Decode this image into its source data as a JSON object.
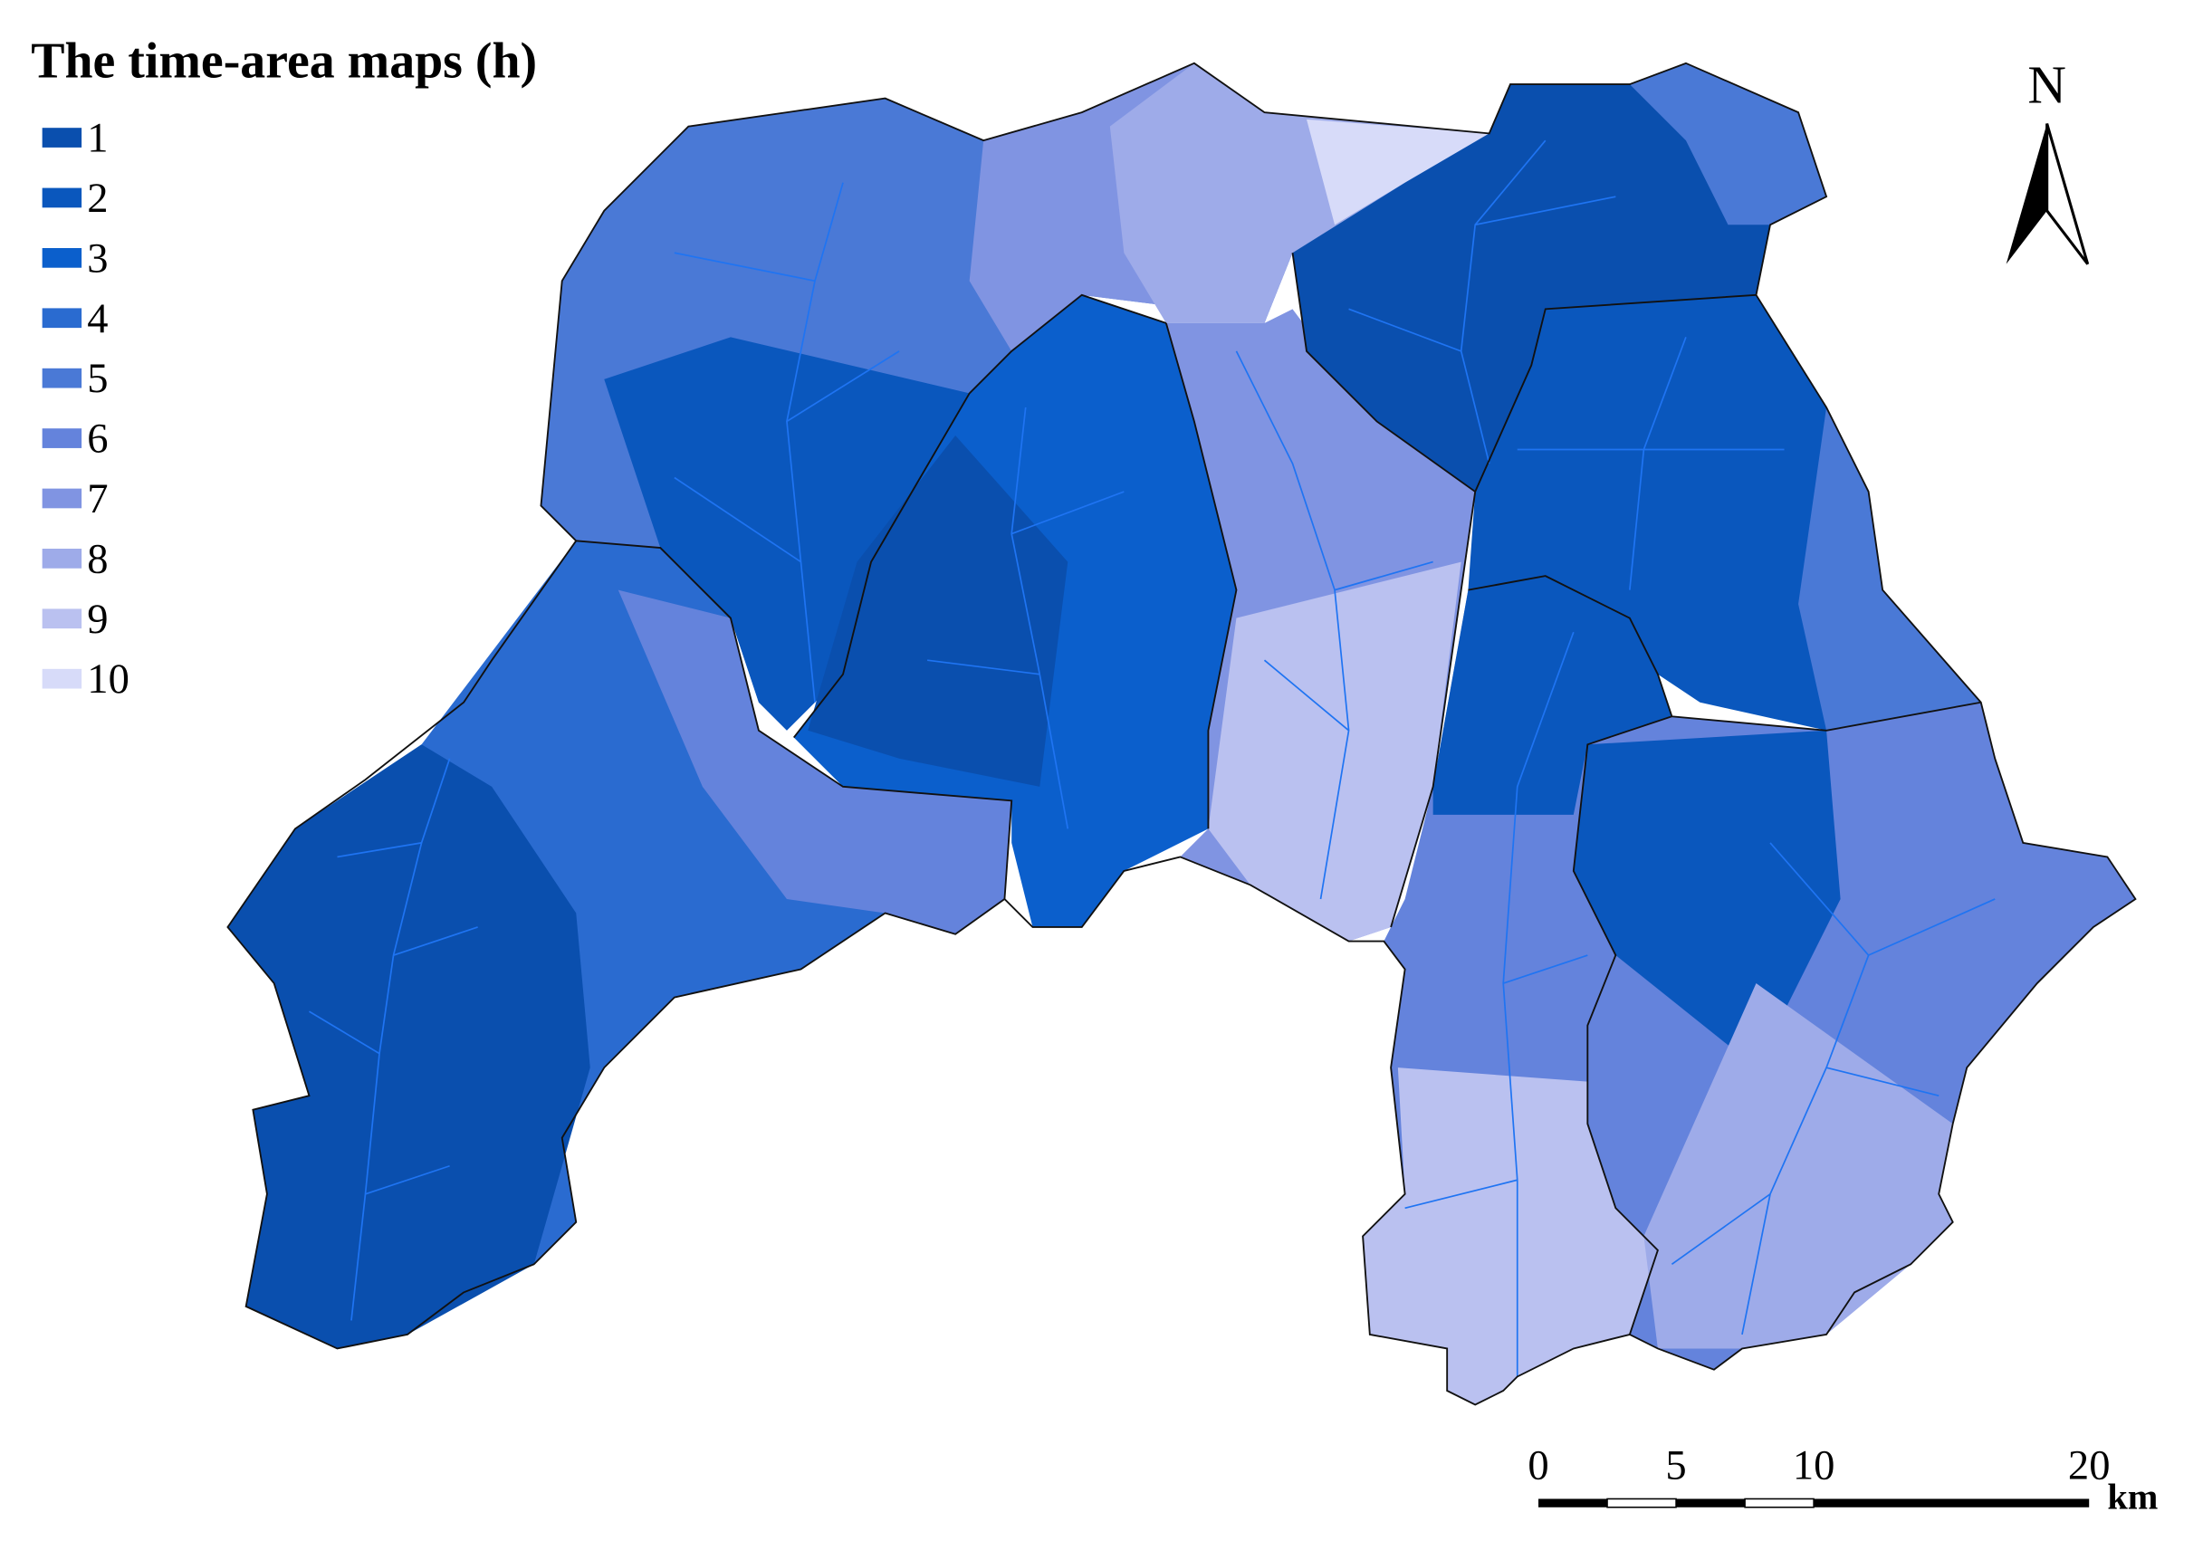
{
  "title": "The time-area maps (h)",
  "legend": [
    {
      "label": "1",
      "color": "#0a4fae"
    },
    {
      "label": "2",
      "color": "#0a57bd"
    },
    {
      "label": "3",
      "color": "#0b5fcc"
    },
    {
      "label": "4",
      "color": "#2a6bd0"
    },
    {
      "label": "5",
      "color": "#4a79d6"
    },
    {
      "label": "6",
      "color": "#6483dc"
    },
    {
      "label": "7",
      "color": "#8094e2"
    },
    {
      "label": "8",
      "color": "#9eabe9"
    },
    {
      "label": "9",
      "color": "#bac1f0"
    },
    {
      "label": "10",
      "color": "#d7dbf9"
    }
  ],
  "north_arrow": "N",
  "scale_bar": {
    "ticks": [
      0,
      5,
      10,
      20
    ],
    "unit": "km"
  }
}
